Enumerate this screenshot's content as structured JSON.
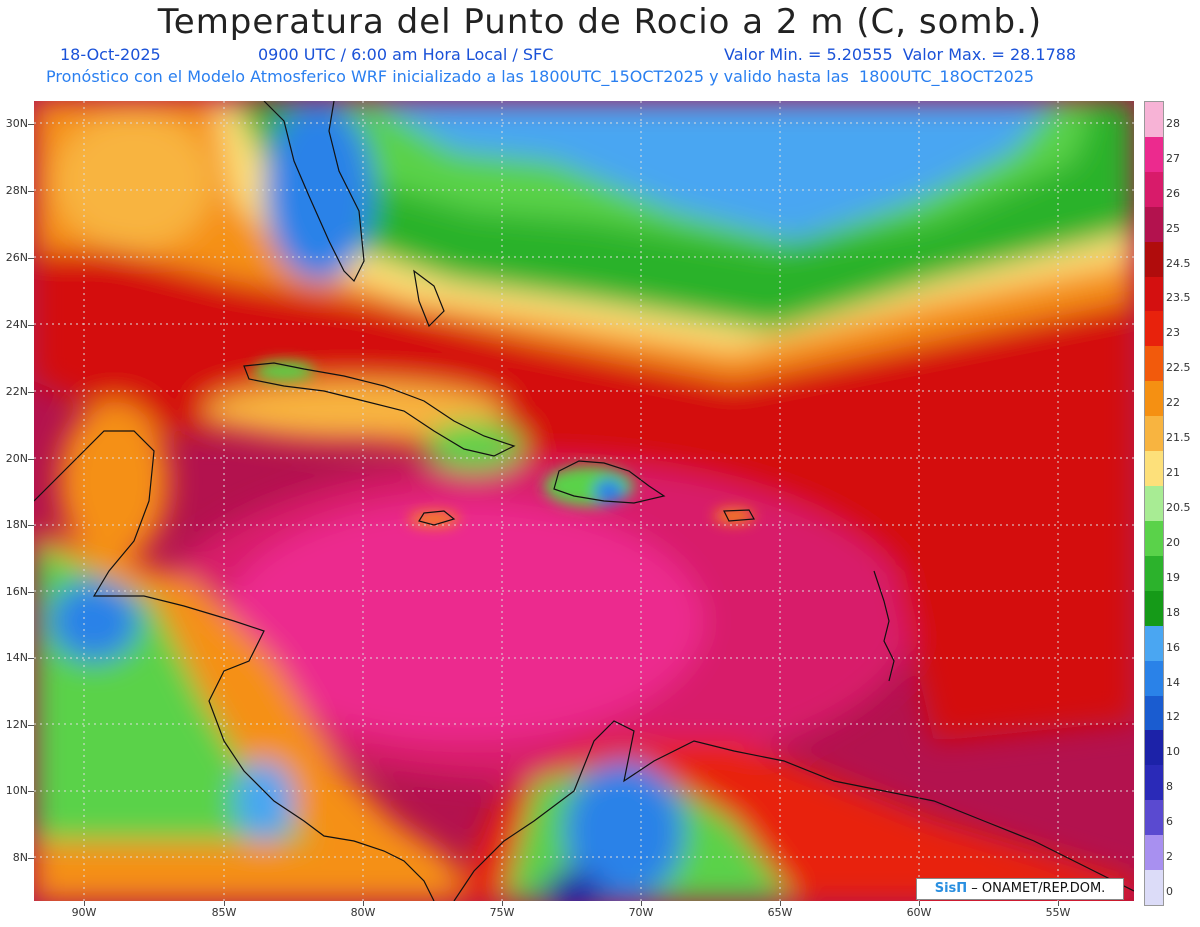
{
  "header": {
    "title": "Temperatura del Punto de Rocio a 2 m (C, somb.)",
    "date": "18-Oct-2025",
    "time": "0900 UTC / 6:00 am Hora Local / SFC",
    "minmax": "Valor Min. = 5.20555  Valor Max. = 28.1788",
    "model_info": "Pronóstico con el Modelo Atmosferico WRF inicializado a las 1800UTC_15OCT2025 y valido hasta las  1800UTC_18OCT2025"
  },
  "axes": {
    "lat_labels": [
      "30N",
      "28N",
      "26N",
      "24N",
      "22N",
      "20N",
      "18N",
      "16N",
      "14N",
      "12N",
      "10N",
      "8N"
    ],
    "lon_labels": [
      "90W",
      "85W",
      "80W",
      "75W",
      "70W",
      "65W",
      "60W",
      "55W"
    ]
  },
  "colorbar": {
    "labels": [
      "28",
      "27",
      "26",
      "25",
      "24.5",
      "23.5",
      "23",
      "22.5",
      "22",
      "21.5",
      "21",
      "20.5",
      "20",
      "19",
      "18",
      "16",
      "14",
      "12",
      "10",
      "8",
      "6",
      "2",
      "0"
    ],
    "colors": [
      "#f7b3d6",
      "#ec2a8e",
      "#d81b6a",
      "#b3124e",
      "#b00c0c",
      "#d41010",
      "#e8220c",
      "#f25a0c",
      "#f59012",
      "#f8b440",
      "#fde07a",
      "#a8ec94",
      "#5ad24a",
      "#2cb22c",
      "#159a18",
      "#4aa6f2",
      "#2a82e8",
      "#1a5cd0",
      "#1c22a8",
      "#2a2ab8",
      "#5a4ad0",
      "#a890f0",
      "#dcdcf8"
    ]
  },
  "credit": {
    "brand": "SisΠ",
    "text": " – ONAMET/REP.DOM."
  },
  "colors": {
    "land_outline": "#111111",
    "grid": "#dddddd"
  }
}
